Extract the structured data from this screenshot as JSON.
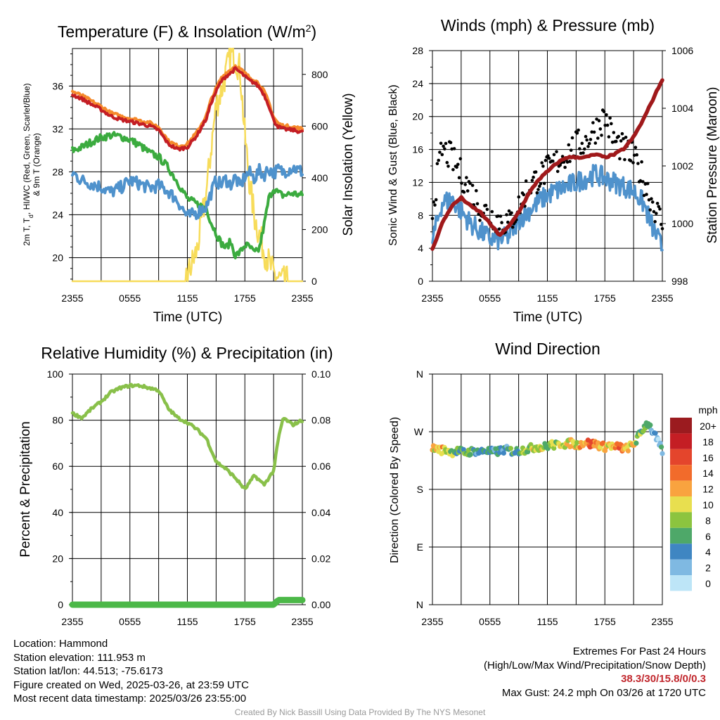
{
  "colors": {
    "temp": "#c41e24",
    "heat_index": "#f26b2b",
    "dewpoint": "#3bab3f",
    "temp9m": "#f58a2c",
    "wind": "#4f92cc",
    "gust": "#000000",
    "pressure": "#a0191b",
    "solar": "#f7dc5a",
    "rh": "#89c04a",
    "precip": "#4cb848"
  },
  "panels": {
    "temp": {
      "title": "Temperature (F) & Insolation (W/m²)",
      "ylabel_left_line1": "2m T, Td, HI/WC (Red, Green, Scarlet/Blue)",
      "ylabel_left_line2": "& 9m T (Orange)",
      "ylabel_right": "Solar Insolation (Yellow)",
      "xlabel": "Time (UTC)"
    },
    "wind": {
      "title": "Winds (mph) & Pressure (mb)",
      "ylabel_left": "Sonic Wind & Gust (Blue, Black)",
      "ylabel_right": "Station Pressure (Maroon)",
      "xlabel": "Time (UTC)"
    },
    "rh": {
      "title": "Relative Humidity (%) & Precipitation (in)",
      "ylabel_left": "Percent & Precipitation"
    },
    "dir": {
      "title": "Wind Direction",
      "ylabel_left": "Direction (Colored By Speed)",
      "colorbar_title": "mph",
      "colorbar_labels": [
        "20+",
        "18",
        "16",
        "14",
        "12",
        "10",
        "8",
        "6",
        "4",
        "2",
        "0"
      ],
      "colorbar_colors": [
        "#9b1b1f",
        "#c41e24",
        "#e4452c",
        "#f26b2b",
        "#f9a33f",
        "#e8df4f",
        "#8cc43f",
        "#4ea869",
        "#3f86c2",
        "#7fb9e2",
        "#bde5f7"
      ]
    }
  },
  "chart_data": [
    {
      "type": "line",
      "title": "Temperature (F) & Insolation (W/m²)",
      "xlabel": "Time (UTC)",
      "ylabel": "2m T, Td, HI/WC (Red, Green, Scarlet/Blue) & 9m T (Orange)",
      "y2label": "Solar Insolation (Yellow)",
      "x_ticks": [
        "2355",
        "0555",
        "1155",
        "1755",
        "2355"
      ],
      "x_range_hours": [
        0,
        24
      ],
      "ylim": [
        17.8,
        39.5
      ],
      "y_ticks": [
        20,
        24,
        28,
        32,
        36
      ],
      "y2lim": [
        0,
        900
      ],
      "y2_ticks": [
        0,
        200,
        400,
        600,
        800
      ],
      "x_hours": [
        0,
        1,
        2,
        3,
        4,
        5,
        6,
        7,
        8,
        9,
        10,
        11,
        12,
        13,
        14,
        14.5,
        15,
        15.5,
        16,
        16.5,
        17,
        17.5,
        18,
        18.5,
        19,
        19.5,
        20,
        20.5,
        21,
        21.5,
        22,
        23,
        24
      ],
      "series": [
        {
          "name": "2m T",
          "color": "#c41e24",
          "values": [
            35.2,
            34.8,
            34.3,
            33.8,
            33.2,
            32.9,
            32.7,
            32.5,
            32.3,
            31.9,
            30.6,
            30.1,
            30.3,
            31.4,
            33.0,
            34.5,
            35.5,
            36.4,
            36.9,
            37.2,
            37.6,
            37.3,
            36.9,
            36.5,
            36.3,
            35.9,
            35.2,
            34.2,
            32.8,
            32.2,
            32.0,
            31.9,
            31.7
          ]
        },
        {
          "name": "Dew point",
          "color": "#3bab3f",
          "values": [
            30.0,
            30.3,
            30.8,
            31.2,
            31.4,
            31.3,
            31.0,
            30.5,
            29.8,
            29.4,
            28.4,
            27.0,
            25.5,
            25.0,
            24.6,
            23.2,
            22.3,
            21.4,
            20.9,
            21.5,
            20.2,
            20.5,
            21.2,
            21.0,
            20.4,
            20.8,
            23.0,
            25.5,
            26.5,
            26.0,
            25.8,
            26.0,
            25.8
          ]
        },
        {
          "name": "Wind chill",
          "color": "#4f92cc",
          "values": [
            27.9,
            27.2,
            26.9,
            26.6,
            26.1,
            26.5,
            27.2,
            26.9,
            26.5,
            26.7,
            26.2,
            25.3,
            23.8,
            24.2,
            24.8,
            26.1,
            27.2,
            26.8,
            27.3,
            26.8,
            27.5,
            26.6,
            27.6,
            27.9,
            27.4,
            28.1,
            27.7,
            28.3,
            27.9,
            28.2,
            28.0,
            28.4,
            28.0
          ]
        },
        {
          "name": "Solar",
          "axis": "right",
          "color": "#f7dc5a",
          "values": [
            0,
            0,
            0,
            0,
            0,
            0,
            0,
            0,
            0,
            0,
            0,
            0,
            20,
            120,
            350,
            520,
            680,
            730,
            800,
            880,
            860,
            820,
            560,
            380,
            250,
            180,
            120,
            70,
            30,
            10,
            0,
            0,
            0
          ]
        }
      ]
    },
    {
      "type": "line",
      "title": "Winds (mph) & Pressure (mb)",
      "xlabel": "Time (UTC)",
      "ylabel": "Sonic Wind & Gust (Blue, Black)",
      "y2label": "Station Pressure (Maroon)",
      "x_ticks": [
        "2355",
        "0555",
        "1155",
        "1755",
        "2355"
      ],
      "x_range_hours": [
        0,
        24
      ],
      "ylim": [
        0,
        28
      ],
      "y_ticks": [
        0,
        4,
        8,
        12,
        16,
        20,
        24,
        28
      ],
      "y2lim": [
        998,
        1006
      ],
      "y2_ticks": [
        998,
        1000,
        1002,
        1004,
        1006
      ],
      "x_hours": [
        0,
        1,
        2,
        3,
        4,
        5,
        6,
        7,
        8,
        9,
        10,
        11,
        12,
        13,
        14,
        15,
        16,
        17,
        18,
        19,
        20,
        21,
        22,
        23,
        24
      ],
      "series": [
        {
          "name": "Sonic Wind",
          "color": "#4f92cc",
          "values": [
            5.0,
            9.5,
            10.0,
            8.5,
            7.0,
            6.0,
            5.2,
            5.0,
            5.5,
            7.5,
            8.5,
            9.5,
            10.5,
            11.0,
            11.5,
            12.0,
            12.5,
            13.0,
            12.5,
            12.0,
            11.5,
            11.0,
            9.5,
            6.5,
            4.0
          ]
        },
        {
          "name": "Gust",
          "color": "#000000",
          "values": [
            9.0,
            16.0,
            15.0,
            13.0,
            11.0,
            9.0,
            8.0,
            7.5,
            7.0,
            9.0,
            11.5,
            12.5,
            13.5,
            14.5,
            15.5,
            16.5,
            17.0,
            18.5,
            20.0,
            17.0,
            16.0,
            15.0,
            12.5,
            9.5,
            7.0
          ]
        },
        {
          "name": "Station Pressure",
          "axis": "right",
          "color": "#a0191b",
          "values": [
            999.1,
            1000.0,
            1000.6,
            1000.9,
            1000.6,
            1000.4,
            1000.0,
            999.6,
            999.9,
            1000.4,
            1001.0,
            1001.5,
            1001.8,
            1002.1,
            1002.3,
            1002.3,
            1002.3,
            1002.4,
            1002.3,
            1002.4,
            1002.6,
            1003.0,
            1003.6,
            1004.3,
            1005.0
          ]
        }
      ]
    },
    {
      "type": "line",
      "title": "Relative Humidity (%) & Precipitation (in)",
      "ylabel": "Percent & Precipitation",
      "x_ticks": [
        "2355",
        "0555",
        "1155",
        "1755",
        "2355"
      ],
      "x_range_hours": [
        0,
        24
      ],
      "ylim": [
        0,
        100
      ],
      "y_ticks": [
        0,
        20,
        40,
        60,
        80,
        100
      ],
      "y2lim": [
        0,
        0.1
      ],
      "y2_ticks": [
        0.0,
        0.02,
        0.04,
        0.06,
        0.08,
        0.1
      ],
      "x_hours": [
        0,
        1,
        2,
        3,
        4,
        5,
        6,
        7,
        8,
        9,
        10,
        11,
        12,
        13,
        14,
        15,
        16,
        17,
        18,
        19,
        20,
        21,
        21.5,
        22,
        23,
        24
      ],
      "series": [
        {
          "name": "Relative Humidity",
          "color": "#89c04a",
          "values": [
            83,
            81,
            85,
            88,
            92,
            94,
            95,
            95,
            94,
            93,
            85,
            81,
            79,
            76,
            72,
            62,
            59,
            55,
            50,
            56,
            52,
            58,
            72,
            81,
            78,
            80
          ]
        },
        {
          "name": "Precipitation",
          "axis": "right",
          "color": "#4cb848",
          "values": [
            0,
            0,
            0,
            0,
            0,
            0,
            0,
            0,
            0,
            0,
            0,
            0,
            0,
            0,
            0,
            0,
            0,
            0,
            0,
            0,
            0,
            0,
            0.002,
            0.002,
            0.002,
            0.002
          ]
        }
      ]
    },
    {
      "type": "scatter",
      "title": "Wind Direction",
      "ylabel": "Direction (Colored By Speed)",
      "x_ticks": [
        "2355",
        "0555",
        "1155",
        "1755",
        "2355"
      ],
      "x_range_hours": [
        0,
        24
      ],
      "y_ticks": [
        "N",
        "E",
        "S",
        "W",
        "N"
      ],
      "ylim_degrees": [
        0,
        360
      ],
      "colorbar": {
        "label": "mph",
        "range": [
          0,
          20
        ]
      },
      "x_hours": [
        0,
        0.5,
        1,
        1.5,
        2,
        2.5,
        3,
        3.5,
        4,
        4.5,
        5,
        5.5,
        6,
        6.5,
        7,
        7.5,
        8,
        8.5,
        9,
        9.5,
        10,
        10.5,
        11,
        11.5,
        12,
        12.5,
        13,
        13.5,
        14,
        14.5,
        15,
        15.5,
        16,
        16.5,
        17,
        17.5,
        18,
        18.5,
        19,
        19.5,
        20,
        20.5,
        21,
        21.5,
        22,
        22.5,
        23,
        23.5,
        24
      ],
      "series": [
        {
          "name": "Direction",
          "values": [
            243,
            244,
            241,
            242,
            238,
            240,
            239,
            237,
            239,
            240,
            238,
            241,
            239,
            238,
            240,
            242,
            241,
            239,
            240,
            242,
            243,
            245,
            247,
            245,
            248,
            250,
            248,
            252,
            250,
            253,
            249,
            251,
            255,
            250,
            252,
            248,
            246,
            250,
            244,
            248,
            242,
            246,
            250,
            262,
            275,
            285,
            270,
            255,
            240
          ]
        },
        {
          "name": "Speed",
          "values": [
            10,
            11,
            12,
            10,
            8,
            7,
            6,
            7,
            6,
            5,
            6,
            5,
            5,
            4,
            5,
            4,
            5,
            6,
            7,
            8,
            7,
            9,
            8,
            10,
            7,
            9,
            8,
            11,
            9,
            12,
            10,
            14,
            11,
            16,
            13,
            12,
            11,
            10,
            12,
            14,
            11,
            10,
            9,
            8,
            6,
            5,
            3,
            2,
            3
          ]
        }
      ]
    }
  ],
  "info_left": [
    "Location: Hammond",
    "Station elevation: 111.953 m",
    "Station lat/lon: 44.513; -75.6173",
    "Figure created on Wed, 2025-03-26, at 23:59 UTC",
    "Most recent data timestamp: 2025/03/26 23:55:00"
  ],
  "info_right": {
    "line1": "Extremes For Past 24 Hours",
    "line2": "(High/Low/Max Wind/Precipitation/Snow Depth)",
    "values": "38.3/30/15.8/0/0.3",
    "gust": "Max Gust: 24.2 mph On 03/26 at 1720 UTC"
  },
  "credit": "Created By Nick Bassill Using Data Provided By The NYS Mesonet"
}
